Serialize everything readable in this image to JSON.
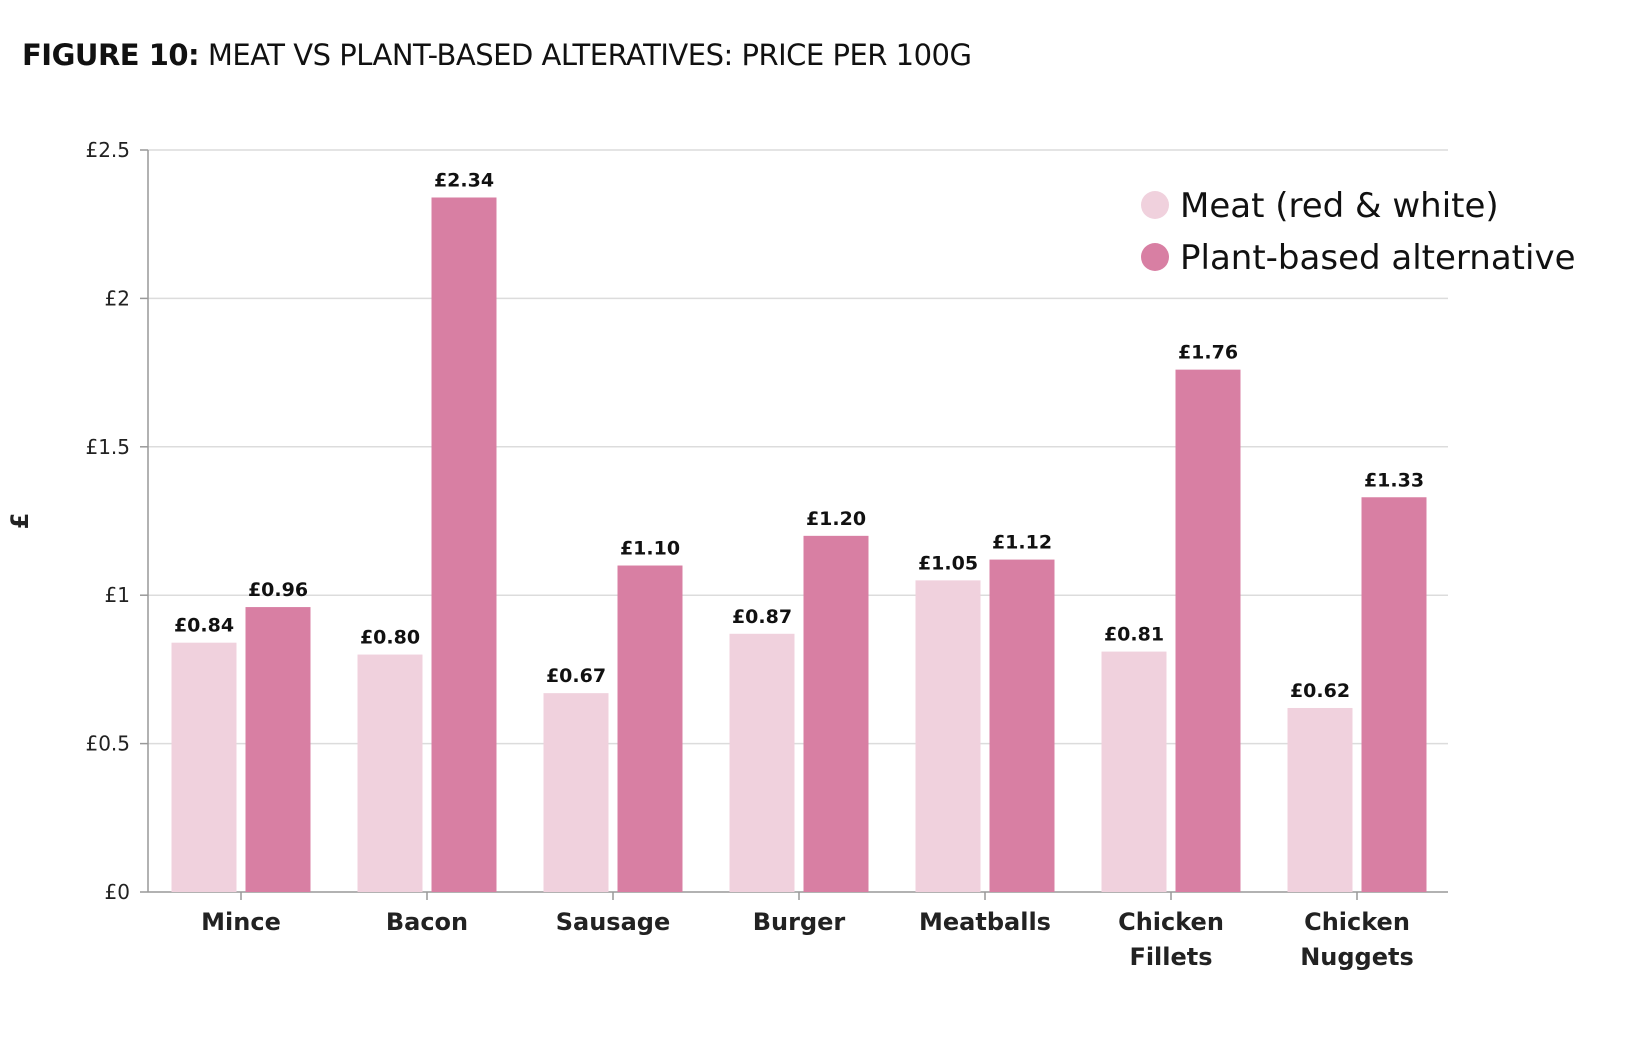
{
  "chart_data": {
    "type": "bar",
    "title_prefix": "FIGURE 10:",
    "title": "MEAT VS PLANT-BASED ALTERATIVES: PRICE PER 100G",
    "xlabel": "",
    "ylabel": "£",
    "ylim": [
      0,
      2.5
    ],
    "yticks": [
      0,
      0.5,
      1,
      1.5,
      2,
      2.5
    ],
    "ytick_labels": [
      "£0",
      "£0.5",
      "£1",
      "£1.5",
      "£2",
      "£2.5"
    ],
    "grid": true,
    "legend_position": "top-right",
    "categories": [
      "Mince",
      "Bacon",
      "Sausage",
      "Burger",
      "Meatballs",
      "Chicken Fillets",
      "Chicken Nuggets"
    ],
    "series": [
      {
        "name": "Meat (red & white)",
        "color": "#f0d1dd",
        "values": [
          0.84,
          0.8,
          0.67,
          0.87,
          1.05,
          0.81,
          0.62
        ],
        "labels": [
          "£0.84",
          "£0.80",
          "£0.67",
          "£0.87",
          "£1.05",
          "£0.81",
          "£0.62"
        ]
      },
      {
        "name": "Plant-based alternative",
        "color": "#d87fa3",
        "values": [
          0.96,
          2.34,
          1.1,
          1.2,
          1.12,
          1.76,
          1.33
        ],
        "labels": [
          "£0.96",
          "£2.34",
          "£1.10",
          "£1.20",
          "£1.12",
          "£1.76",
          "£1.33"
        ]
      }
    ]
  }
}
